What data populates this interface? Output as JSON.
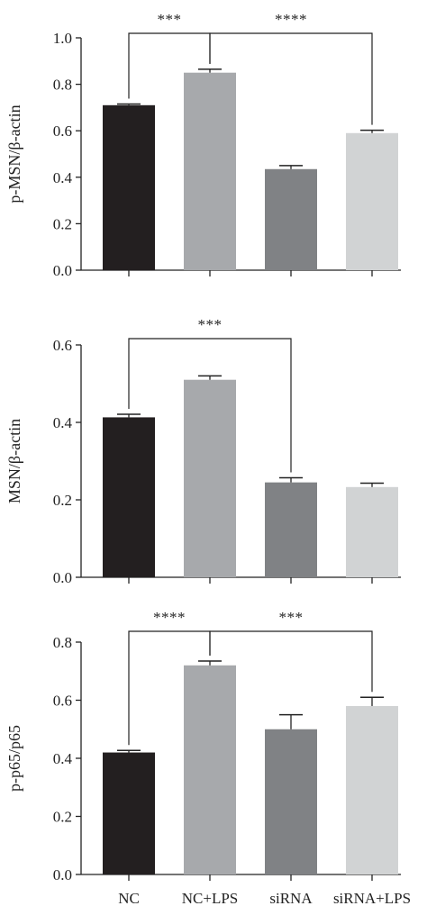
{
  "chart_data": [
    {
      "type": "bar",
      "categories": [
        "NC",
        "NC+LPS",
        "siRNA",
        "siRNA+LPS"
      ],
      "values": [
        0.71,
        0.85,
        0.435,
        0.59
      ],
      "errors": [
        0.005,
        0.015,
        0.015,
        0.012
      ],
      "colors": [
        "#231f20",
        "#a7a9ac",
        "#808285",
        "#d1d3d4"
      ],
      "ylabel": "p-MSN/β-actin",
      "ylim": [
        0,
        1.0
      ],
      "yticks": [
        "0.0",
        "0.2",
        "0.4",
        "0.6",
        "0.8",
        "1.0"
      ],
      "significance": [
        {
          "from": 0,
          "to": 1,
          "label": "***"
        },
        {
          "from": 1,
          "to": 3,
          "label": "****"
        }
      ]
    },
    {
      "type": "bar",
      "categories": [
        "NC",
        "NC+LPS",
        "siRNA",
        "siRNA+LPS"
      ],
      "values": [
        0.413,
        0.51,
        0.245,
        0.233
      ],
      "errors": [
        0.008,
        0.01,
        0.012,
        0.01
      ],
      "colors": [
        "#231f20",
        "#a7a9ac",
        "#808285",
        "#d1d3d4"
      ],
      "ylabel": "MSN/β-actin",
      "ylim": [
        0,
        0.6
      ],
      "yticks": [
        "0.0",
        "0.2",
        "0.4",
        "0.6"
      ],
      "significance": [
        {
          "from": 0,
          "to": 2,
          "label": "***"
        }
      ]
    },
    {
      "type": "bar",
      "categories": [
        "NC",
        "NC+LPS",
        "siRNA",
        "siRNA+LPS"
      ],
      "values": [
        0.42,
        0.72,
        0.5,
        0.58
      ],
      "errors": [
        0.007,
        0.015,
        0.05,
        0.03
      ],
      "colors": [
        "#231f20",
        "#a7a9ac",
        "#808285",
        "#d1d3d4"
      ],
      "ylabel": "p-p65/p65",
      "ylim": [
        0,
        0.8
      ],
      "yticks": [
        "0.0",
        "0.2",
        "0.4",
        "0.6",
        "0.8"
      ],
      "significance": [
        {
          "from": 0,
          "to": 1,
          "label": "****"
        },
        {
          "from": 1,
          "to": 3,
          "label": "***"
        }
      ],
      "show_category_labels": true
    }
  ]
}
